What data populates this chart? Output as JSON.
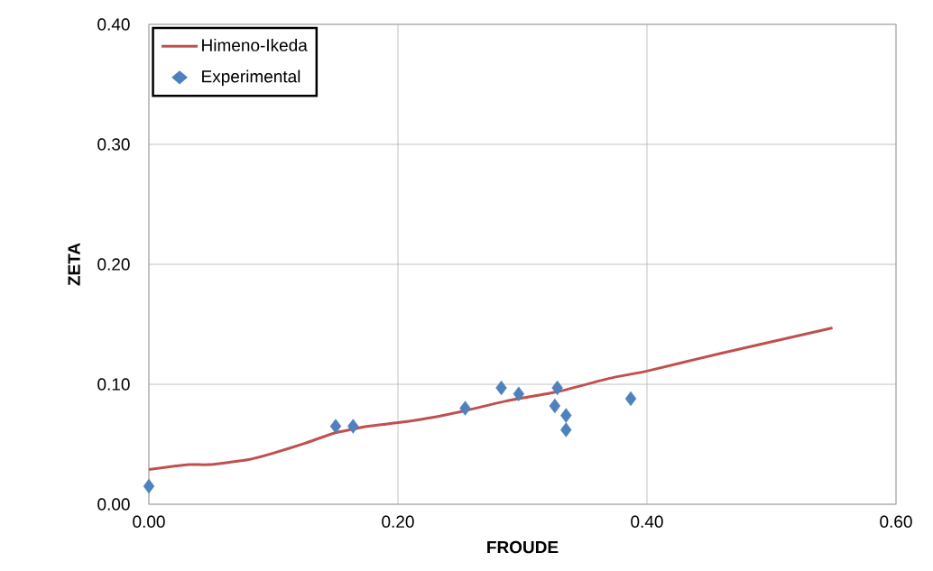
{
  "chart_data": {
    "type": "scatter",
    "xlabel": "FROUDE",
    "ylabel": "ZETA",
    "xlim": [
      0,
      0.6
    ],
    "ylim": [
      0,
      0.4
    ],
    "xticks": [
      {
        "value": 0,
        "label": "0.00"
      },
      {
        "value": 0.2,
        "label": "0.20"
      },
      {
        "value": 0.4,
        "label": "0.40"
      },
      {
        "value": 0.6,
        "label": "0.60"
      }
    ],
    "yticks": [
      {
        "value": 0,
        "label": "0.00"
      },
      {
        "value": 0.1,
        "label": "0.10"
      },
      {
        "value": 0.2,
        "label": "0.20"
      },
      {
        "value": 0.3,
        "label": "0.30"
      },
      {
        "value": 0.4,
        "label": "0.40"
      }
    ],
    "grid": true,
    "legend": "top left",
    "series": [
      {
        "name": "Himeno-Ikeda",
        "type": "line",
        "color": "#c0504d",
        "marker": "none",
        "line_style": "solid",
        "x": [
          0,
          0.032,
          0.048,
          0.079,
          0.098,
          0.126,
          0.148,
          0.176,
          0.2,
          0.231,
          0.254,
          0.287,
          0.329,
          0.37,
          0.4,
          0.46,
          0.549
        ],
        "values": [
          0.029,
          0.033,
          0.033,
          0.037,
          0.042,
          0.051,
          0.059,
          0.065,
          0.068,
          0.073,
          0.078,
          0.086,
          0.094,
          0.105,
          0.111,
          0.126,
          0.147
        ]
      },
      {
        "name": "Experimental",
        "color": "#4f81bd",
        "marker": "diamond",
        "x": [
          0,
          0.15,
          0.164,
          0.254,
          0.283,
          0.297,
          0.328,
          0.326,
          0.335,
          0.335,
          0.387
        ],
        "values": [
          0.015,
          0.065,
          0.065,
          0.08,
          0.097,
          0.092,
          0.097,
          0.082,
          0.074,
          0.062,
          0.088
        ]
      }
    ]
  }
}
